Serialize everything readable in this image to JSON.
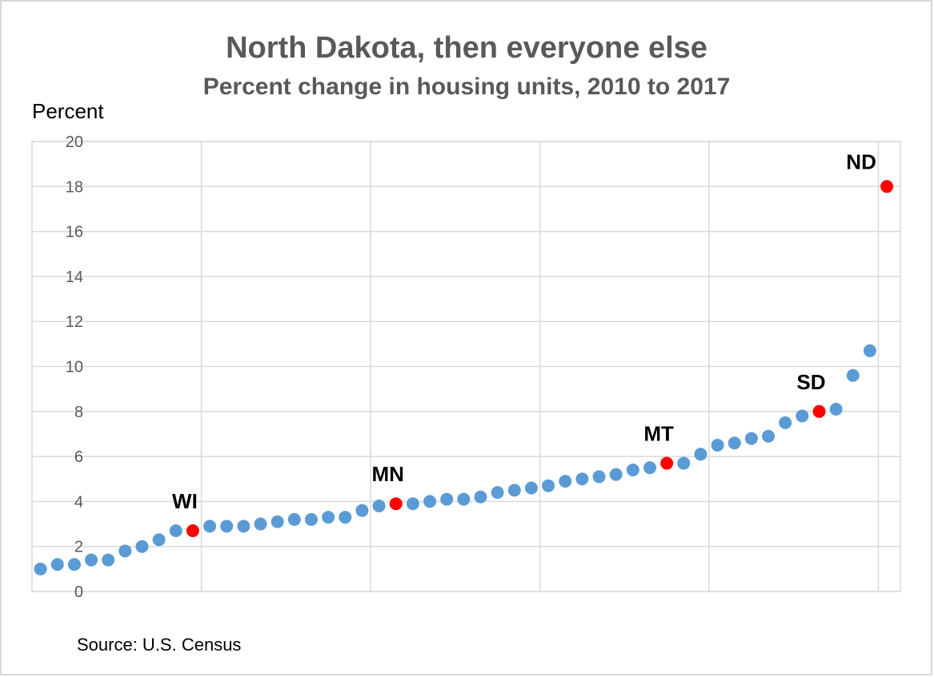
{
  "chart_data": {
    "type": "scatter",
    "title": "North Dakota, then everyone else",
    "subtitle": "Percent change in housing units, 2010 to 2017",
    "ylabel": "Percent",
    "xlabel": "",
    "ylim": [
      0,
      20
    ],
    "yticks": [
      "0",
      "2",
      "4",
      "6",
      "8",
      "10",
      "12",
      "14",
      "16",
      "18",
      "20"
    ],
    "grid": true,
    "source": "Source: U.S. Census",
    "colors": {
      "default": "#5B9BD5",
      "highlight": "#FF0000"
    },
    "points": [
      {
        "x": 1,
        "y": 1.0
      },
      {
        "x": 2,
        "y": 1.2
      },
      {
        "x": 3,
        "y": 1.2
      },
      {
        "x": 4,
        "y": 1.4
      },
      {
        "x": 5,
        "y": 1.4
      },
      {
        "x": 6,
        "y": 1.8
      },
      {
        "x": 7,
        "y": 2.0
      },
      {
        "x": 8,
        "y": 2.3
      },
      {
        "x": 9,
        "y": 2.7
      },
      {
        "x": 10,
        "y": 2.7,
        "label": "WI",
        "highlight": true
      },
      {
        "x": 11,
        "y": 2.9
      },
      {
        "x": 12,
        "y": 2.9
      },
      {
        "x": 13,
        "y": 2.9
      },
      {
        "x": 14,
        "y": 3.0
      },
      {
        "x": 15,
        "y": 3.1
      },
      {
        "x": 16,
        "y": 3.2
      },
      {
        "x": 17,
        "y": 3.2
      },
      {
        "x": 18,
        "y": 3.3
      },
      {
        "x": 19,
        "y": 3.3
      },
      {
        "x": 20,
        "y": 3.6
      },
      {
        "x": 21,
        "y": 3.8
      },
      {
        "x": 22,
        "y": 3.9,
        "label": "MN",
        "highlight": true
      },
      {
        "x": 23,
        "y": 3.9
      },
      {
        "x": 24,
        "y": 4.0
      },
      {
        "x": 25,
        "y": 4.1
      },
      {
        "x": 26,
        "y": 4.1
      },
      {
        "x": 27,
        "y": 4.2
      },
      {
        "x": 28,
        "y": 4.4
      },
      {
        "x": 29,
        "y": 4.5
      },
      {
        "x": 30,
        "y": 4.6
      },
      {
        "x": 31,
        "y": 4.7
      },
      {
        "x": 32,
        "y": 4.9
      },
      {
        "x": 33,
        "y": 5.0
      },
      {
        "x": 34,
        "y": 5.1
      },
      {
        "x": 35,
        "y": 5.2
      },
      {
        "x": 36,
        "y": 5.4
      },
      {
        "x": 37,
        "y": 5.5
      },
      {
        "x": 38,
        "y": 5.7,
        "label": "MT",
        "highlight": true
      },
      {
        "x": 39,
        "y": 5.7
      },
      {
        "x": 40,
        "y": 6.1
      },
      {
        "x": 41,
        "y": 6.5
      },
      {
        "x": 42,
        "y": 6.6
      },
      {
        "x": 43,
        "y": 6.8
      },
      {
        "x": 44,
        "y": 6.9
      },
      {
        "x": 45,
        "y": 7.5
      },
      {
        "x": 46,
        "y": 7.8
      },
      {
        "x": 47,
        "y": 8.0,
        "label": "SD",
        "highlight": true
      },
      {
        "x": 48,
        "y": 8.1
      },
      {
        "x": 49,
        "y": 9.6
      },
      {
        "x": 50,
        "y": 10.7
      },
      {
        "x": 51,
        "y": 18.0,
        "label": "ND",
        "highlight": true
      }
    ]
  }
}
